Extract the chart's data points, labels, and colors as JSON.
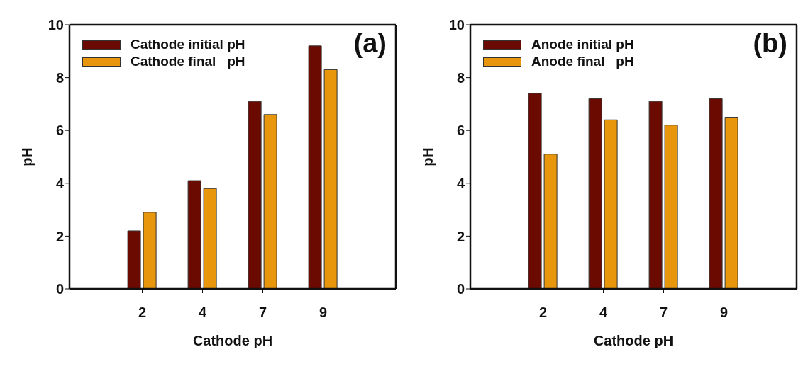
{
  "chart_data": [
    {
      "type": "bar",
      "xlabel": "Cathode pH",
      "ylabel": "pH",
      "annotations": [
        "(a)"
      ],
      "categories": [
        "2",
        "4",
        "7",
        "9"
      ],
      "ylim": [
        0,
        10
      ],
      "yticks": [
        0,
        2,
        4,
        6,
        8,
        10
      ],
      "legend": "top left",
      "series": [
        {
          "name": "Cathode initial pH",
          "color": "#6b0a00",
          "values": [
            2.2,
            4.1,
            7.1,
            9.2
          ]
        },
        {
          "name": "Cathode final   pH",
          "color": "#e8960c",
          "values": [
            2.9,
            3.8,
            6.6,
            8.3
          ]
        }
      ]
    },
    {
      "type": "bar",
      "xlabel": "Cathode pH",
      "ylabel": "pH",
      "annotations": [
        "(b)"
      ],
      "categories": [
        "2",
        "4",
        "7",
        "9"
      ],
      "ylim": [
        0,
        10
      ],
      "yticks": [
        0,
        2,
        4,
        6,
        8,
        10
      ],
      "legend": "top left",
      "series": [
        {
          "name": "Anode initial pH",
          "color": "#6b0a00",
          "values": [
            7.4,
            7.2,
            7.1,
            7.2
          ]
        },
        {
          "name": "Anode final   pH",
          "color": "#e8960c",
          "values": [
            5.1,
            6.4,
            6.2,
            6.5
          ]
        }
      ]
    }
  ]
}
